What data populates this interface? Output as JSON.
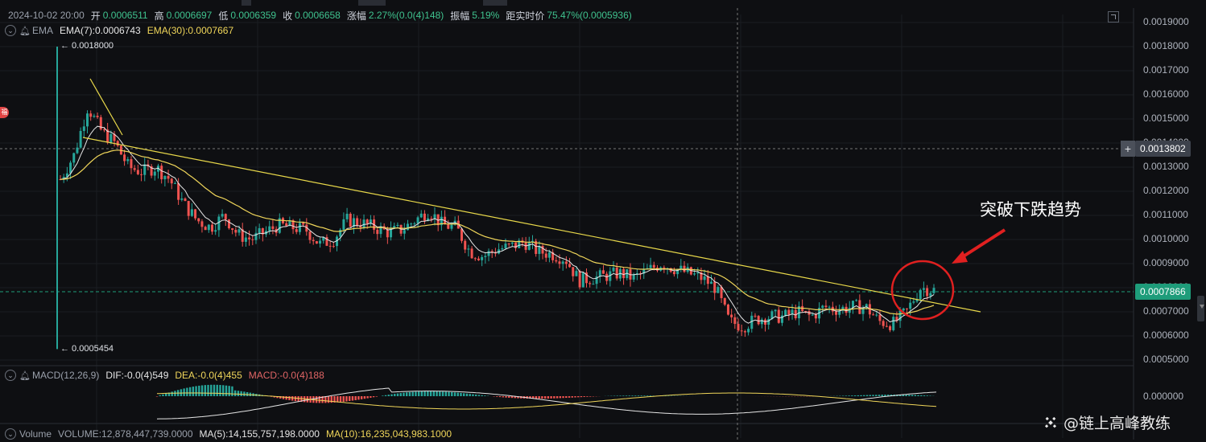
{
  "ohlc": {
    "datetime": "2024-10-02 20:00",
    "open_label": "开",
    "open": "0.0006511",
    "high_label": "高",
    "high": "0.0006697",
    "low_label": "低",
    "low": "0.0006359",
    "close_label": "收",
    "close": "0.0006658",
    "change_label": "涨幅",
    "change": "2.27%(0.0(4)148)",
    "amp_label": "振幅",
    "amp": "5.19%",
    "dist_label": "距实时价",
    "dist": "75.47%(0.0005936)"
  },
  "ema": {
    "name": "EMA",
    "ema7": "EMA(7):0.0006743",
    "ema30": "EMA(30):0.0007667"
  },
  "macd": {
    "name": "MACD(12,26,9)",
    "dif": "DIF:-0.0(4)549",
    "dea": "DEA:-0.0(4)455",
    "macd": "MACD:-0.0(4)188"
  },
  "volume": {
    "name": "Volume",
    "vol": "VOLUME:12,878,447,739.0000",
    "ma5": "MA(5):14,155,757,198.0000",
    "ma10": "MA(10):16,235,043,983.1000"
  },
  "price_axis": [
    "0.0019000",
    "0.0018000",
    "0.0017000",
    "0.0016000",
    "0.0015000",
    "0.0014000",
    "0.0013000",
    "0.0012000",
    "0.0011000",
    "0.0010000",
    "0.0009000",
    "0.0008000",
    "0.0007000",
    "0.0006000",
    "0.0005000"
  ],
  "macd_axis": "0.000000",
  "crosshair_price": "0.0013802",
  "last_price": "0.0007866",
  "plus_symbol": "+",
  "max_label": "← 0.0018000",
  "min_label": "← 0.0005454",
  "annotation": "突破下跌趋势",
  "watermark": "@链上高峰教练",
  "badge": "福",
  "colors": {
    "up": "#26a69a",
    "down": "#ef5350",
    "ema7": "#e6e6e6",
    "ema30": "#f0d65a",
    "trendline": "#e8d84a",
    "circle": "#e02020",
    "last_price": "#1e9c7a"
  },
  "chart_data": {
    "type": "candlestick",
    "price_range": [
      0.00045,
      0.00195
    ],
    "key_points": [
      {
        "label": "spike high",
        "price": 0.0018
      },
      {
        "label": "spike low",
        "price": 0.0005454
      },
      {
        "label": "last close",
        "price": 0.0007866
      }
    ],
    "close_path": [
      0.00125,
      0.00135,
      0.00155,
      0.00145,
      0.0014,
      0.0013,
      0.00128,
      0.0013,
      0.00125,
      0.00115,
      0.00108,
      0.00105,
      0.0011,
      0.00102,
      0.001,
      0.00103,
      0.00106,
      0.00105,
      0.00104,
      0.00098,
      0.001,
      0.00108,
      0.00107,
      0.00105,
      0.00103,
      0.00104,
      0.00108,
      0.00112,
      0.00106,
      0.00105,
      0.00095,
      0.00093,
      0.00096,
      0.00097,
      0.00099,
      0.00095,
      0.00094,
      0.00092,
      0.00083,
      0.00084,
      0.00085,
      0.00086,
      0.00084,
      0.00087,
      0.0009,
      0.00088,
      0.00086,
      0.00084,
      0.0008,
      0.00066,
      0.00064,
      0.00067,
      0.00068,
      0.00068,
      0.0007,
      0.00068,
      0.00072,
      0.00071,
      0.00072,
      0.00072,
      0.00066,
      0.00065,
      0.0007,
      0.0008,
      0.00079
    ]
  }
}
